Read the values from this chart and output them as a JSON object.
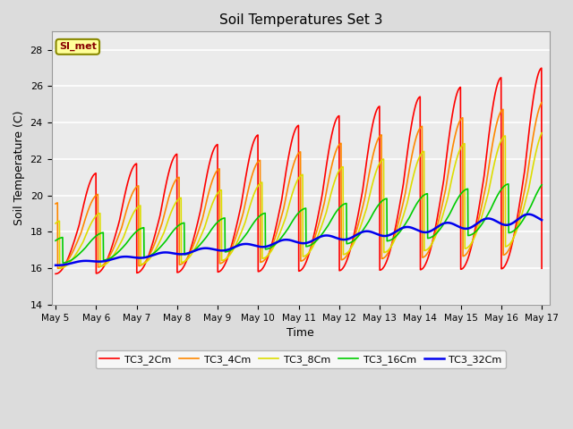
{
  "title": "Soil Temperatures Set 3",
  "xlabel": "Time",
  "ylabel": "Soil Temperature (C)",
  "ylim": [
    14,
    29
  ],
  "yticks": [
    14,
    16,
    18,
    20,
    22,
    24,
    26,
    28
  ],
  "bg_color": "#dcdcdc",
  "plot_bg": "#ebebeb",
  "annotation_text": "SI_met",
  "annotation_bg": "#ffff99",
  "annotation_border": "#888800",
  "legend_labels": [
    "TC3_2Cm",
    "TC3_4Cm",
    "TC3_8Cm",
    "TC3_16Cm",
    "TC3_32Cm"
  ],
  "line_colors": [
    "#ff0000",
    "#ff8800",
    "#dddd00",
    "#00cc00",
    "#0000ee"
  ],
  "line_widths": [
    1.2,
    1.2,
    1.2,
    1.2,
    1.8
  ],
  "xtick_labels": [
    "May 5",
    "May 6",
    "May 7",
    "May 8",
    "May 9",
    "May 10",
    "May 11",
    "May 12",
    "May 13",
    "May 14",
    "May 15",
    "May 16",
    "May 17"
  ]
}
